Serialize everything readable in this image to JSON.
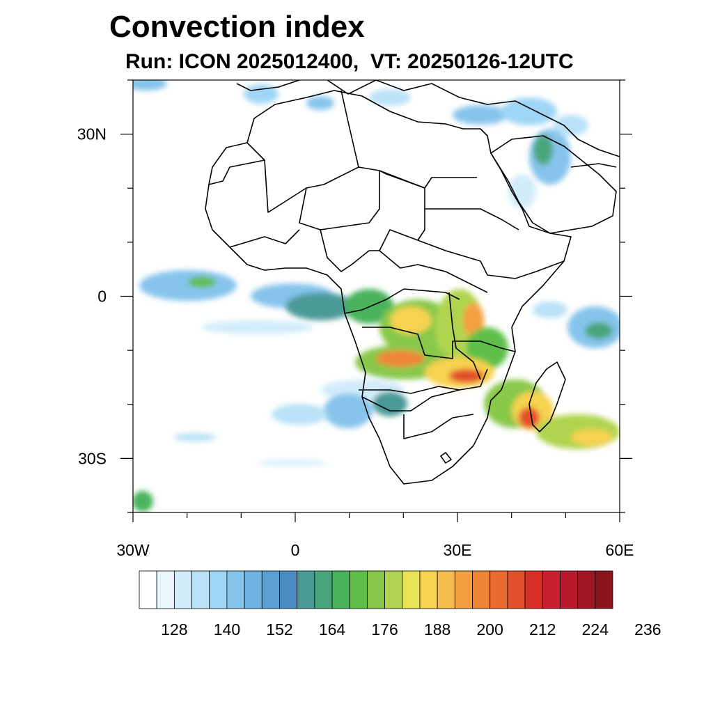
{
  "title": "Convection index",
  "subtitle": "Run: ICON 2025012400,  VT: 20250126-12UTC",
  "map": {
    "lon_range": [
      -30,
      60
    ],
    "lat_range": [
      -40,
      40
    ],
    "lat_ticks": [
      {
        "value": 30,
        "label": "30N"
      },
      {
        "value": 0,
        "label": "0"
      },
      {
        "value": -30,
        "label": "30S"
      }
    ],
    "lon_ticks": [
      {
        "value": -30,
        "label": "30W"
      },
      {
        "value": 0,
        "label": "0"
      },
      {
        "value": 30,
        "label": "30E"
      },
      {
        "value": 60,
        "label": "60E"
      }
    ],
    "minor_lon_step": 10,
    "minor_lat_step": 10
  },
  "colorbar": {
    "colors": [
      "#ffffff",
      "#eaf6fd",
      "#d3ecfa",
      "#b9e2f8",
      "#9fd6f5",
      "#86c4ec",
      "#6eb2e2",
      "#5a9fd6",
      "#4a8bc4",
      "#4b9a9a",
      "#4aa67a",
      "#48b25c",
      "#5ebf48",
      "#88c84c",
      "#b0d450",
      "#e9e457",
      "#f7d250",
      "#f6bd4c",
      "#f4a042",
      "#ef8637",
      "#ea6a30",
      "#e2502c",
      "#d83029",
      "#c81f2c",
      "#b5192a",
      "#a11623",
      "#8b141d"
    ],
    "tick_labels": [
      "128",
      "140",
      "152",
      "164",
      "176",
      "188",
      "200",
      "212",
      "224",
      "236"
    ],
    "tick_positions": [
      2,
      5,
      8,
      11,
      14,
      17,
      20,
      23,
      26,
      29
    ]
  }
}
